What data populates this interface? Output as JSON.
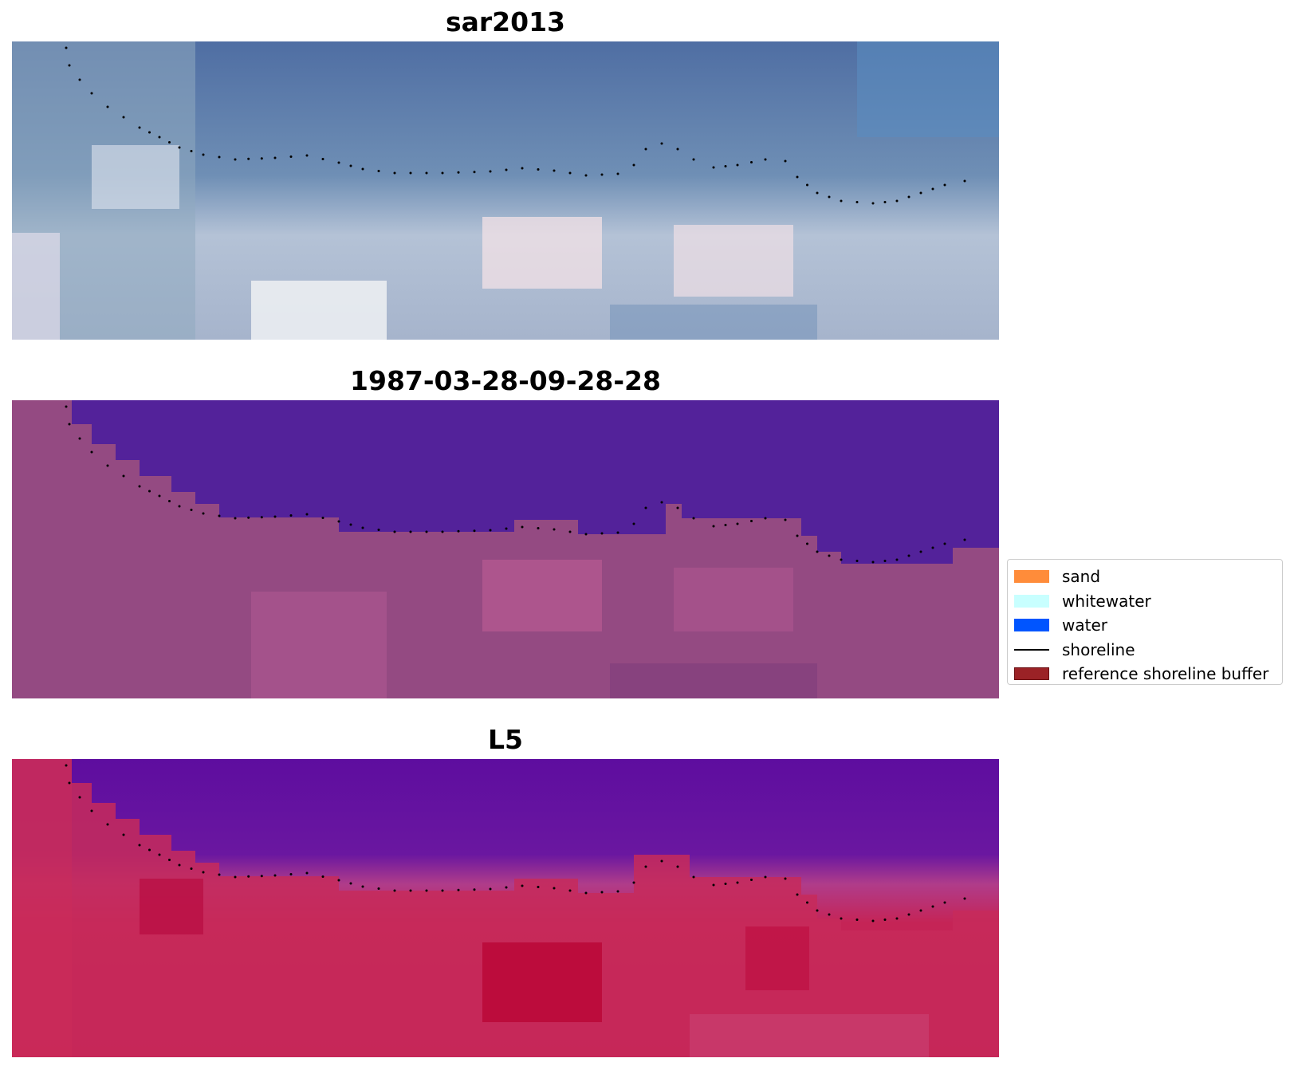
{
  "panels": [
    {
      "title": "sar2013"
    },
    {
      "title": "1987-03-28-09-28-28"
    },
    {
      "title": "L5"
    }
  ],
  "legend": {
    "items": [
      {
        "label": "sand",
        "color": "#ff8c3a",
        "kind": "patch"
      },
      {
        "label": "whitewater",
        "color": "#c8ffff",
        "kind": "patch"
      },
      {
        "label": "water",
        "color": "#0055ff",
        "kind": "patch"
      },
      {
        "label": "shoreline",
        "color": "#000000",
        "kind": "line"
      },
      {
        "label": "reference shoreline buffer",
        "color": "#9b2226",
        "kind": "patch"
      }
    ]
  },
  "colors": {
    "rgb_water": "#4f70a4",
    "rgb_land": "#b8c4d6",
    "classified_water": "#53229a",
    "classified_land": "#944a82",
    "ndwi_water": "#5a0a9e",
    "ndwi_land": "#c21d52",
    "shoreline_dots": "#000000"
  }
}
